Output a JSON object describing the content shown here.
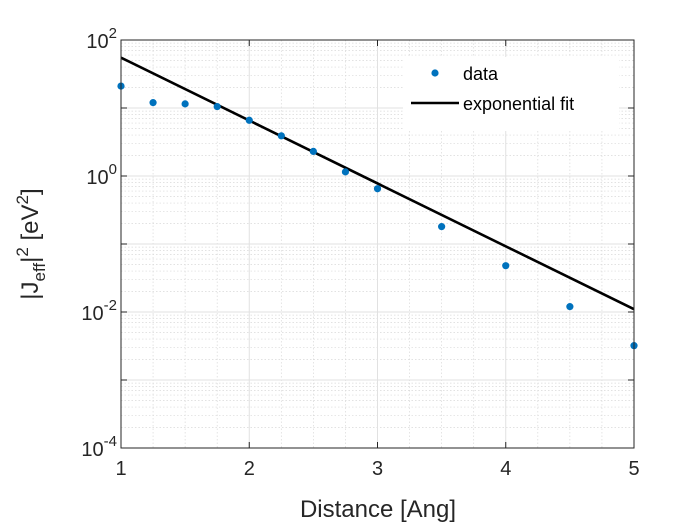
{
  "chart_data": {
    "type": "scatter",
    "xlabel": "Distance [Ang]",
    "ylabel": {
      "base": "|J",
      "sub": "eff",
      "mid": "|",
      "sup1": "2",
      "unit_open": " [eV",
      "sup2": "2",
      "unit_close": "]"
    },
    "xlim": [
      1,
      5
    ],
    "ylim": [
      0.0001,
      100
    ],
    "yscale": "log",
    "grid": true,
    "legend_position": "top-right",
    "xticks": [
      1,
      2,
      3,
      4,
      5
    ],
    "xtick_labels": [
      "1",
      "2",
      "3",
      "4",
      "5"
    ],
    "yticks": [
      {
        "value": 0.0001,
        "base": "10",
        "exp": "-4"
      },
      {
        "value": 0.01,
        "base": "10",
        "exp": "-2"
      },
      {
        "value": 1,
        "base": "10",
        "exp": "0"
      },
      {
        "value": 100,
        "base": "10",
        "exp": "2"
      }
    ],
    "series": [
      {
        "name": "data",
        "kind": "points",
        "color": "#0072BD",
        "x": [
          1.0,
          1.25,
          1.5,
          1.75,
          2.0,
          2.25,
          2.5,
          2.75,
          3.0,
          3.5,
          4.0,
          4.5,
          5.0
        ],
        "y": [
          21,
          12,
          11.5,
          10.5,
          6.6,
          3.9,
          2.3,
          1.15,
          0.65,
          0.18,
          0.048,
          0.012,
          0.0032
        ]
      },
      {
        "name": "exponential fit",
        "kind": "line",
        "color": "#000000",
        "x": [
          1,
          5
        ],
        "y": [
          55,
          0.011
        ]
      }
    ]
  }
}
